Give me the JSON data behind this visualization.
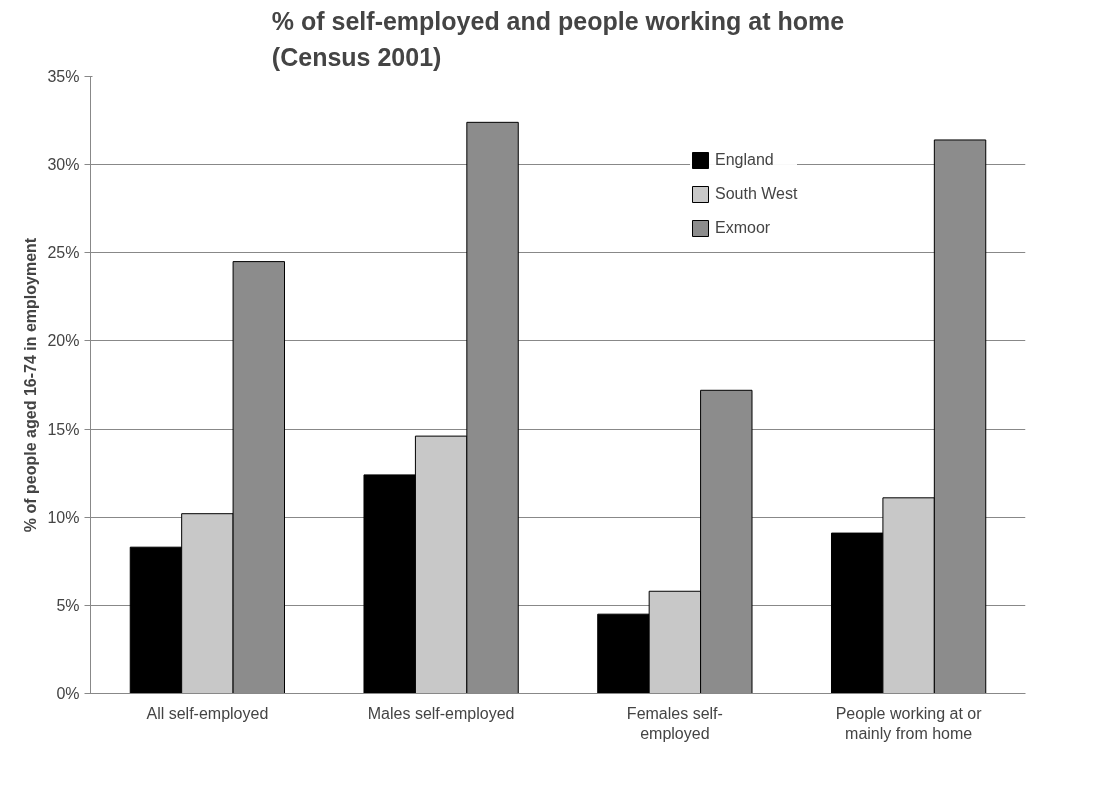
{
  "chart_data": {
    "type": "bar",
    "title": "% of self-employed and people working at home\n(Census 2001)",
    "ylabel": "% of people aged 16-74 in employment",
    "categories": [
      "All self-employed",
      "Males self-employed",
      "Females self-employed",
      "People working at or mainly from home"
    ],
    "series": [
      {
        "name": "England",
        "color": "#000000",
        "values": [
          8.3,
          12.4,
          4.5,
          9.1
        ]
      },
      {
        "name": "South West",
        "color": "#c8c8c8",
        "values": [
          10.2,
          14.6,
          5.8,
          11.1
        ]
      },
      {
        "name": "Exmoor",
        "color": "#8c8c8c",
        "values": [
          24.5,
          32.4,
          17.2,
          31.4
        ]
      }
    ],
    "ylim": [
      0,
      35
    ],
    "yticks": [
      {
        "value": 0,
        "label": "0%"
      },
      {
        "value": 5,
        "label": "5%"
      },
      {
        "value": 10,
        "label": "10%"
      },
      {
        "value": 15,
        "label": "15%"
      },
      {
        "value": 20,
        "label": "20%"
      },
      {
        "value": 25,
        "label": "25%"
      },
      {
        "value": 30,
        "label": "30%"
      },
      {
        "value": 35,
        "label": "35%"
      }
    ],
    "grid": "y",
    "legend": "top right"
  }
}
